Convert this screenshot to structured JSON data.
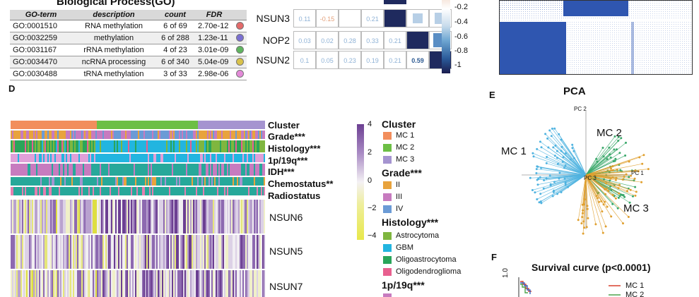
{
  "panel_letters": {
    "d": "D",
    "e": "E",
    "f": "F"
  },
  "go_table": {
    "title": "Biological Process(GO)",
    "headers": [
      "GO-term",
      "description",
      "count",
      "FDR"
    ],
    "rows": [
      {
        "term": "GO:0001510",
        "desc": "RNA methylation",
        "count": "6 of 69",
        "fdr": "2.70e-12",
        "color": "#e36a6a"
      },
      {
        "term": "GO:0032259",
        "desc": "methylation",
        "count": "6 of 288",
        "fdr": "1.23e-11",
        "color": "#7a6fd1"
      },
      {
        "term": "GO:0031167",
        "desc": "rRNA methylation",
        "count": "4 of 23",
        "fdr": "3.01e-09",
        "color": "#5fb55f"
      },
      {
        "term": "GO:0034470",
        "desc": "ncRNA processing",
        "count": "6 of 340",
        "fdr": "5.04e-09",
        "color": "#d9c24a"
      },
      {
        "term": "GO:0030488",
        "desc": "tRNA methylation",
        "count": "3 of 33",
        "fdr": "2.98e-06",
        "color": "#e38ad8"
      }
    ]
  },
  "correlation": {
    "row_labels": [
      "NSUN3",
      "NOP2",
      "NSUN2"
    ],
    "rows": [
      {
        "values": [
          "0.11",
          "-0.15",
          "",
          "0.21",
          "",
          "",
          ""
        ]
      },
      {
        "values": [
          "0.03",
          "0.02",
          "0.28",
          "0.33",
          "0.21",
          "",
          ""
        ]
      },
      {
        "values": [
          "0.1",
          "0.05",
          "0.23",
          "0.19",
          "0.21",
          "0.59",
          ""
        ]
      }
    ],
    "colorbar_ticks": [
      "-0.2",
      "-0.4",
      "-0.6",
      "-0.8",
      "-1"
    ]
  },
  "heatmap": {
    "tracks": [
      "Cluster",
      "Grade***",
      "Histology***",
      "1p/19q***",
      "IDH***",
      "Chemostatus**",
      "Radiostatus"
    ],
    "genes": [
      "NSUN6",
      "NSUN5",
      "NSUN7"
    ],
    "colorbar_ticks": [
      "4",
      "2",
      "0",
      "−2",
      "−4"
    ]
  },
  "legend": {
    "cluster": {
      "title": "Cluster",
      "items": [
        {
          "label": "MC 1",
          "color": "#f28e5c"
        },
        {
          "label": "MC 2",
          "color": "#6cbf45"
        },
        {
          "label": "MC 3",
          "color": "#a594d0"
        }
      ]
    },
    "grade": {
      "title": "Grade***",
      "items": [
        {
          "label": "II",
          "color": "#e8a33d"
        },
        {
          "label": "III",
          "color": "#c77bbf"
        },
        {
          "label": "IV",
          "color": "#6b9bd6"
        }
      ]
    },
    "histology": {
      "title": "Histology***",
      "items": [
        {
          "label": "Astrocytoma",
          "color": "#7fb63f"
        },
        {
          "label": "GBM",
          "color": "#22b5e0"
        },
        {
          "label": "Oligoastrocytoma",
          "color": "#2aa55a"
        },
        {
          "label": "Oligodendroglioma",
          "color": "#e8608f"
        }
      ]
    },
    "codel": {
      "title": "1p/19q***"
    }
  },
  "pca": {
    "title": "PCA",
    "axis_pc1": "PC 1",
    "axis_pc2": "PC 2",
    "axis_pc3": "PC 3",
    "cluster_labels": [
      "MC 1",
      "MC 2",
      "MC 3"
    ]
  },
  "survival": {
    "title": "Survival curve (p<0.0001)",
    "y_tick": "1.0",
    "legend": [
      "MC 1",
      "MC 2"
    ]
  }
}
